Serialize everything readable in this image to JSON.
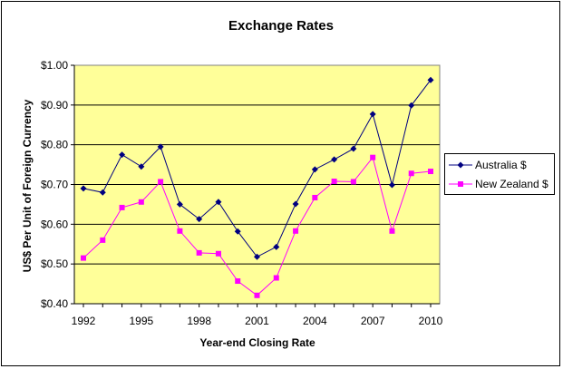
{
  "chart_data": {
    "type": "line",
    "title": "Exchange Rates",
    "xlabel": "Year-end Closing Rate",
    "ylabel": "US$ Per Unit of Foreign Currency",
    "x": [
      1992,
      1993,
      1994,
      1995,
      1996,
      1997,
      1998,
      1999,
      2000,
      2001,
      2002,
      2003,
      2004,
      2005,
      2006,
      2007,
      2008,
      2009,
      2010
    ],
    "x_tick_labels": [
      "1992",
      "1995",
      "1998",
      "2001",
      "2004",
      "2007",
      "2010"
    ],
    "y_tick_labels": [
      "$0.40",
      "$0.50",
      "$0.60",
      "$0.70",
      "$0.80",
      "$0.90",
      "$1.00"
    ],
    "ylim": [
      0.4,
      1.0
    ],
    "grid": "horizontal",
    "legend_position": "right",
    "plot_background": "#FFFF99",
    "series": [
      {
        "name": "Australia $",
        "color": "#000080",
        "marker": "diamond",
        "values": [
          0.69,
          0.68,
          0.775,
          0.745,
          0.795,
          0.65,
          0.613,
          0.656,
          0.582,
          0.518,
          0.543,
          0.651,
          0.738,
          0.763,
          0.79,
          0.877,
          0.699,
          0.899,
          0.963
        ]
      },
      {
        "name": "New Zealand $",
        "color": "#FF00FF",
        "marker": "square",
        "values": [
          0.515,
          0.56,
          0.642,
          0.656,
          0.707,
          0.583,
          0.528,
          0.526,
          0.457,
          0.421,
          0.465,
          0.583,
          0.667,
          0.708,
          0.707,
          0.768,
          0.583,
          0.728,
          0.733
        ]
      }
    ]
  }
}
